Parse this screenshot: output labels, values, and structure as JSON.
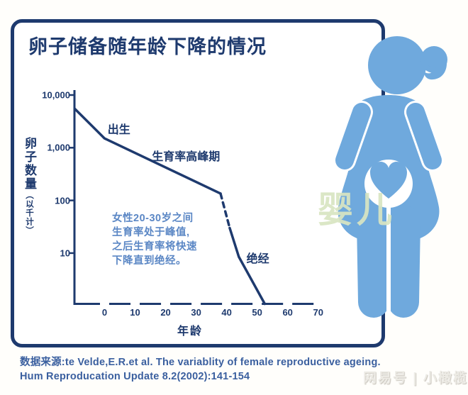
{
  "chart_data": {
    "type": "line",
    "title": "卵子储备随年龄下降的情况",
    "xlabel": "年龄",
    "ylabel_main": "卵子数量",
    "ylabel_sub": "（以千计）",
    "y_scale": "log",
    "grid": false,
    "xlim": [
      -10,
      71
    ],
    "ylim": [
      1,
      10000
    ],
    "x_ticks": [
      0,
      10,
      20,
      30,
      40,
      50,
      60,
      70
    ],
    "y_ticks": [
      {
        "label": "10,000",
        "value": 10000
      },
      {
        "label": "1,000",
        "value": 1000
      },
      {
        "label": "100",
        "value": 100
      },
      {
        "label": "10",
        "value": 10
      }
    ],
    "series": [
      {
        "name": "卵子储备-出生到高峰期",
        "style": "solid",
        "points": [
          [
            -9.8,
            5500
          ],
          [
            0,
            1500
          ],
          [
            38,
            135
          ]
        ]
      },
      {
        "name": "卵子储备-过渡段",
        "style": "dashed",
        "points": [
          [
            38,
            135
          ],
          [
            41,
            30
          ]
        ]
      },
      {
        "name": "卵子储备-快速下降到绝经",
        "style": "solid",
        "points": [
          [
            41,
            30
          ],
          [
            44,
            8.5
          ],
          [
            52.5,
            1.05
          ]
        ]
      }
    ],
    "annotations": [
      {
        "text": "出生",
        "x": 1,
        "y": 2330
      },
      {
        "text": "生育率高峰期",
        "x": 15.5,
        "y": 720
      },
      {
        "text": "绝经",
        "x": 46.5,
        "y": 8.3
      }
    ],
    "note_lines": [
      "女性20-30岁之间",
      "生育率处于峰值,",
      "之后生育率将快速",
      "下降直到绝经。"
    ]
  },
  "figure": {
    "icon": "pregnant-woman-icon",
    "belly_icon": "heart-icon",
    "color": "#6fa9dd"
  },
  "watermark_center": "婴儿",
  "source": {
    "line1": "数据来源:te Velde,E.R.et al. The variablity of female reproductive ageing.",
    "line2": "Hum Reproducation Update 8.2(2002):141-154"
  },
  "watermark_bottom_right": "网易号 | 小橄榄",
  "colors": {
    "navy": "#1e3a6e",
    "curve": "#1e3a6e",
    "silhouette_blue": "#6fa9dd",
    "note_blue": "#5b87c5",
    "source_blue": "#3a5f9f",
    "watermark_green": "#d9e5c2"
  }
}
